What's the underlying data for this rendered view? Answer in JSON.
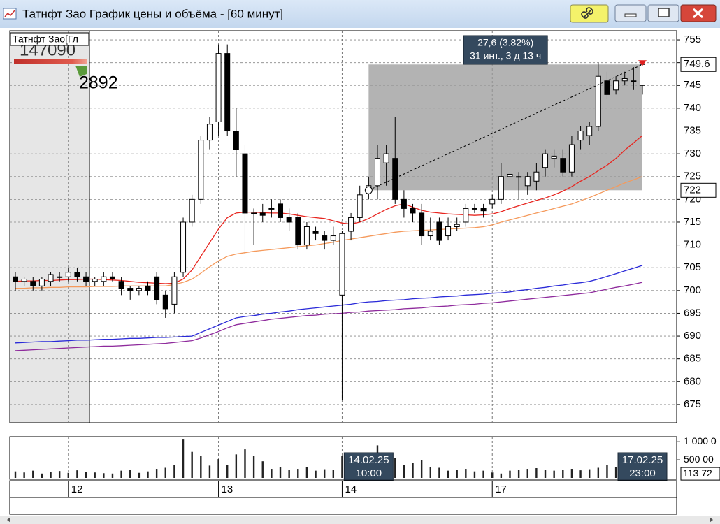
{
  "window": {
    "title": "Татнфт Зао График цены и объёма - [60 минут]"
  },
  "chart_data": [
    {
      "type": "candlestick",
      "overlay": {
        "label": "Татнфт Зао[Гл",
        "value1": 147090,
        "value2": 2892
      },
      "categories": [
        null,
        null,
        null,
        null,
        null,
        null,
        "12",
        null,
        null,
        null,
        null,
        null,
        null,
        null,
        null,
        null,
        null,
        null,
        null,
        null,
        null,
        null,
        null,
        "13",
        null,
        null,
        null,
        null,
        null,
        null,
        null,
        null,
        null,
        null,
        null,
        null,
        null,
        "14",
        null,
        null,
        null,
        null,
        null,
        null,
        null,
        null,
        null,
        null,
        null,
        null,
        null,
        null,
        null,
        null,
        "17",
        null,
        null,
        null,
        null,
        null,
        null,
        null,
        null,
        null,
        null,
        null,
        null,
        null,
        null,
        null,
        null,
        null
      ],
      "open": [
        703,
        702,
        702,
        701,
        702,
        703,
        703,
        704,
        703,
        702,
        702,
        703,
        702,
        700.5,
        700,
        701,
        703,
        699,
        697,
        704,
        715,
        720,
        733,
        737,
        752,
        735,
        730,
        717,
        717,
        718,
        719,
        716,
        716,
        710,
        713,
        712,
        711,
        699,
        713,
        716,
        722,
        723,
        728,
        729,
        720,
        718,
        717,
        712,
        715,
        712,
        714,
        715,
        718,
        718,
        719,
        720,
        725,
        725,
        723,
        724,
        727,
        729,
        729,
        726,
        733,
        734,
        736,
        746,
        744,
        746,
        746,
        745
      ],
      "high": [
        704,
        703,
        703,
        703,
        704,
        704,
        705,
        705,
        704,
        703,
        704,
        704,
        703,
        701,
        701,
        702,
        704,
        700,
        704,
        716,
        721,
        734,
        738,
        754,
        754,
        740,
        732,
        718,
        719,
        720,
        720,
        718,
        717,
        715,
        714,
        713,
        714,
        713,
        717,
        723,
        725,
        732,
        732,
        738,
        722,
        719,
        719,
        716,
        716,
        716,
        716,
        719,
        719,
        719,
        721,
        728,
        726,
        726,
        726,
        728,
        731,
        731,
        731,
        734,
        736,
        737,
        750,
        748,
        747,
        748,
        749,
        750
      ],
      "low": [
        700,
        701,
        700,
        700,
        701,
        702,
        702,
        702,
        701,
        701,
        701,
        702,
        699,
        698,
        699,
        699,
        697,
        694,
        695,
        703,
        714,
        719,
        731,
        734,
        734,
        725,
        708,
        710,
        715,
        716,
        715,
        713,
        709,
        709,
        711,
        709,
        710,
        676,
        711,
        715,
        720,
        720,
        723,
        719,
        716,
        715,
        710,
        711,
        710,
        711,
        713,
        714,
        717,
        716,
        718,
        719,
        723,
        720,
        721,
        722,
        725,
        727,
        725,
        725,
        731,
        732,
        735,
        742,
        743,
        745,
        744,
        743
      ],
      "close": [
        702,
        702.5,
        701,
        702.5,
        703.5,
        703,
        704,
        703,
        702,
        702.5,
        703,
        702.5,
        700.5,
        700,
        700.5,
        700,
        698,
        696,
        703,
        715,
        720,
        733,
        736.5,
        752,
        735,
        731,
        717,
        717,
        716.5,
        718,
        716,
        715,
        710,
        714,
        712.5,
        711,
        712,
        712.5,
        716,
        721,
        723,
        729,
        730,
        720,
        718,
        717,
        712,
        713,
        711,
        714,
        714.5,
        718,
        718,
        717.5,
        720,
        725,
        725.5,
        725,
        725,
        726,
        730,
        729.5,
        726,
        732,
        735,
        736,
        747,
        743,
        746,
        746.5,
        746,
        749.6
      ],
      "lines": [
        {
          "color": "#e8251f",
          "values": [
            702,
            702.1,
            702.1,
            702.2,
            702.2,
            702.3,
            702.4,
            702.4,
            702.5,
            702.5,
            702.4,
            702.3,
            702.2,
            702,
            701.8,
            701.7,
            701.6,
            701.5,
            701.6,
            702.5,
            704.5,
            707.5,
            710.5,
            713.5,
            716,
            717,
            717.2,
            717.2,
            717.1,
            717,
            717,
            716.8,
            716.5,
            716.2,
            716,
            715.8,
            715.3,
            714.8,
            714.6,
            715,
            715.8,
            716.8,
            717.8,
            718.6,
            719,
            718.3,
            717.6,
            717.2,
            717,
            716.8,
            716.7,
            716.6,
            716.5,
            716.6,
            716.8,
            717.3,
            718,
            718.6,
            719.2,
            719.8,
            720.3,
            721,
            721.8,
            722.8,
            724,
            725,
            726.3,
            727.5,
            729,
            730.8,
            732.4,
            734
          ]
        },
        {
          "color": "#f59a5c",
          "values": [
            700.5,
            700.5,
            700.6,
            700.6,
            700.7,
            700.7,
            700.8,
            700.8,
            700.8,
            700.9,
            700.9,
            700.9,
            701,
            701,
            701,
            701,
            701,
            701,
            701.3,
            701.8,
            702.5,
            703.8,
            705.2,
            706.5,
            707.5,
            708,
            708.3,
            708.6,
            708.8,
            709,
            709.2,
            709.4,
            709.6,
            709.8,
            710,
            710.3,
            710.6,
            711,
            711.3,
            711.6,
            711.9,
            712.2,
            712.5,
            712.8,
            713,
            713.1,
            713.2,
            713.3,
            713.4,
            713.5,
            713.6,
            713.7,
            713.8,
            714,
            714.4,
            715,
            715.5,
            716,
            716.5,
            717,
            717.5,
            718,
            718.5,
            719,
            719.7,
            720.4,
            721.2,
            722,
            722.8,
            723.6,
            724.3,
            725
          ]
        },
        {
          "color": "#2a2ad8",
          "values": [
            688.5,
            688.6,
            688.7,
            688.8,
            688.8,
            688.9,
            689,
            689.1,
            689.1,
            689.2,
            689.3,
            689.3,
            689.4,
            689.5,
            689.5,
            689.6,
            689.7,
            689.7,
            689.8,
            689.9,
            690,
            690.8,
            691.6,
            692.4,
            693.2,
            694,
            694.3,
            694.5,
            694.8,
            695,
            695.3,
            695.5,
            695.8,
            696,
            696.2,
            696.4,
            696.6,
            696.8,
            697,
            697.3,
            697.5,
            697.6,
            697.8,
            697.9,
            698,
            698.2,
            698.3,
            698.4,
            698.6,
            698.7,
            698.8,
            699,
            699.1,
            699.2,
            699.4,
            699.5,
            699.7,
            700,
            700.2,
            700.5,
            700.7,
            701,
            701.2,
            701.5,
            701.7,
            702,
            702.5,
            703.1,
            703.7,
            704.3,
            704.9,
            705.5
          ]
        },
        {
          "color": "#8e2a9c",
          "values": [
            686.8,
            686.9,
            687,
            687.1,
            687.2,
            687.3,
            687.4,
            687.5,
            687.6,
            687.7,
            687.8,
            687.8,
            687.9,
            688,
            688.1,
            688.2,
            688.3,
            688.4,
            688.6,
            688.8,
            689,
            689.6,
            690.3,
            691,
            691.8,
            692.5,
            692.8,
            693.1,
            693.4,
            693.7,
            693.9,
            694.1,
            694.3,
            694.5,
            694.6,
            694.8,
            694.9,
            695,
            695.2,
            695.3,
            695.5,
            695.6,
            695.7,
            695.8,
            696,
            696.1,
            696.2,
            696.4,
            696.5,
            696.6,
            696.8,
            696.9,
            697,
            697.2,
            697.3,
            697.5,
            697.7,
            697.9,
            698.1,
            698.3,
            698.5,
            698.7,
            698.9,
            699.1,
            699.3,
            699.5,
            699.9,
            700.3,
            700.7,
            701,
            701.4,
            701.8
          ]
        }
      ],
      "ylim": [
        671,
        757
      ],
      "yticks": [
        755,
        750,
        745,
        740,
        735,
        730,
        725,
        720,
        715,
        710,
        705,
        700,
        695,
        690,
        685,
        680,
        675
      ],
      "grid": true,
      "current": {
        "value": 749.6,
        "label": "749,6"
      },
      "measure": {
        "start": 40,
        "end": 71,
        "low": {
          "value": 722,
          "label": "722"
        },
        "text": [
          "27,6 (3.82%)",
          "31 инт., 3 д 13 ч"
        ]
      },
      "cursor_labels": [
        {
          "index": 40,
          "date": "14.02.25",
          "time": "10:00"
        },
        {
          "index": 71,
          "date": "17.02.25",
          "time": "23:00"
        }
      ]
    },
    {
      "type": "bar",
      "color": "#222222",
      "values": [
        180000,
        150000,
        200000,
        120000,
        160000,
        190000,
        140000,
        210000,
        170000,
        150000,
        130000,
        120000,
        200000,
        220000,
        140000,
        180000,
        250000,
        280000,
        350000,
        1060000,
        720000,
        600000,
        340000,
        520000,
        350000,
        650000,
        790000,
        600000,
        460000,
        250000,
        300000,
        230000,
        250000,
        300000,
        200000,
        240000,
        230000,
        600000,
        300000,
        350000,
        250000,
        900000,
        450000,
        550000,
        350000,
        420000,
        500000,
        300000,
        280000,
        200000,
        220000,
        250000,
        180000,
        200000,
        150000,
        120000,
        200000,
        230000,
        250000,
        270000,
        230000,
        200000,
        220000,
        250000,
        210000,
        240000,
        280000,
        350000,
        300000,
        250000,
        180000,
        113720
      ],
      "ylim": [
        0,
        1120000
      ],
      "yticks": [
        {
          "value": 1000000,
          "label": "1 000 0"
        },
        {
          "value": 500000,
          "label": "500 00"
        }
      ],
      "current": {
        "value": 113720,
        "label": "113 72"
      }
    }
  ]
}
